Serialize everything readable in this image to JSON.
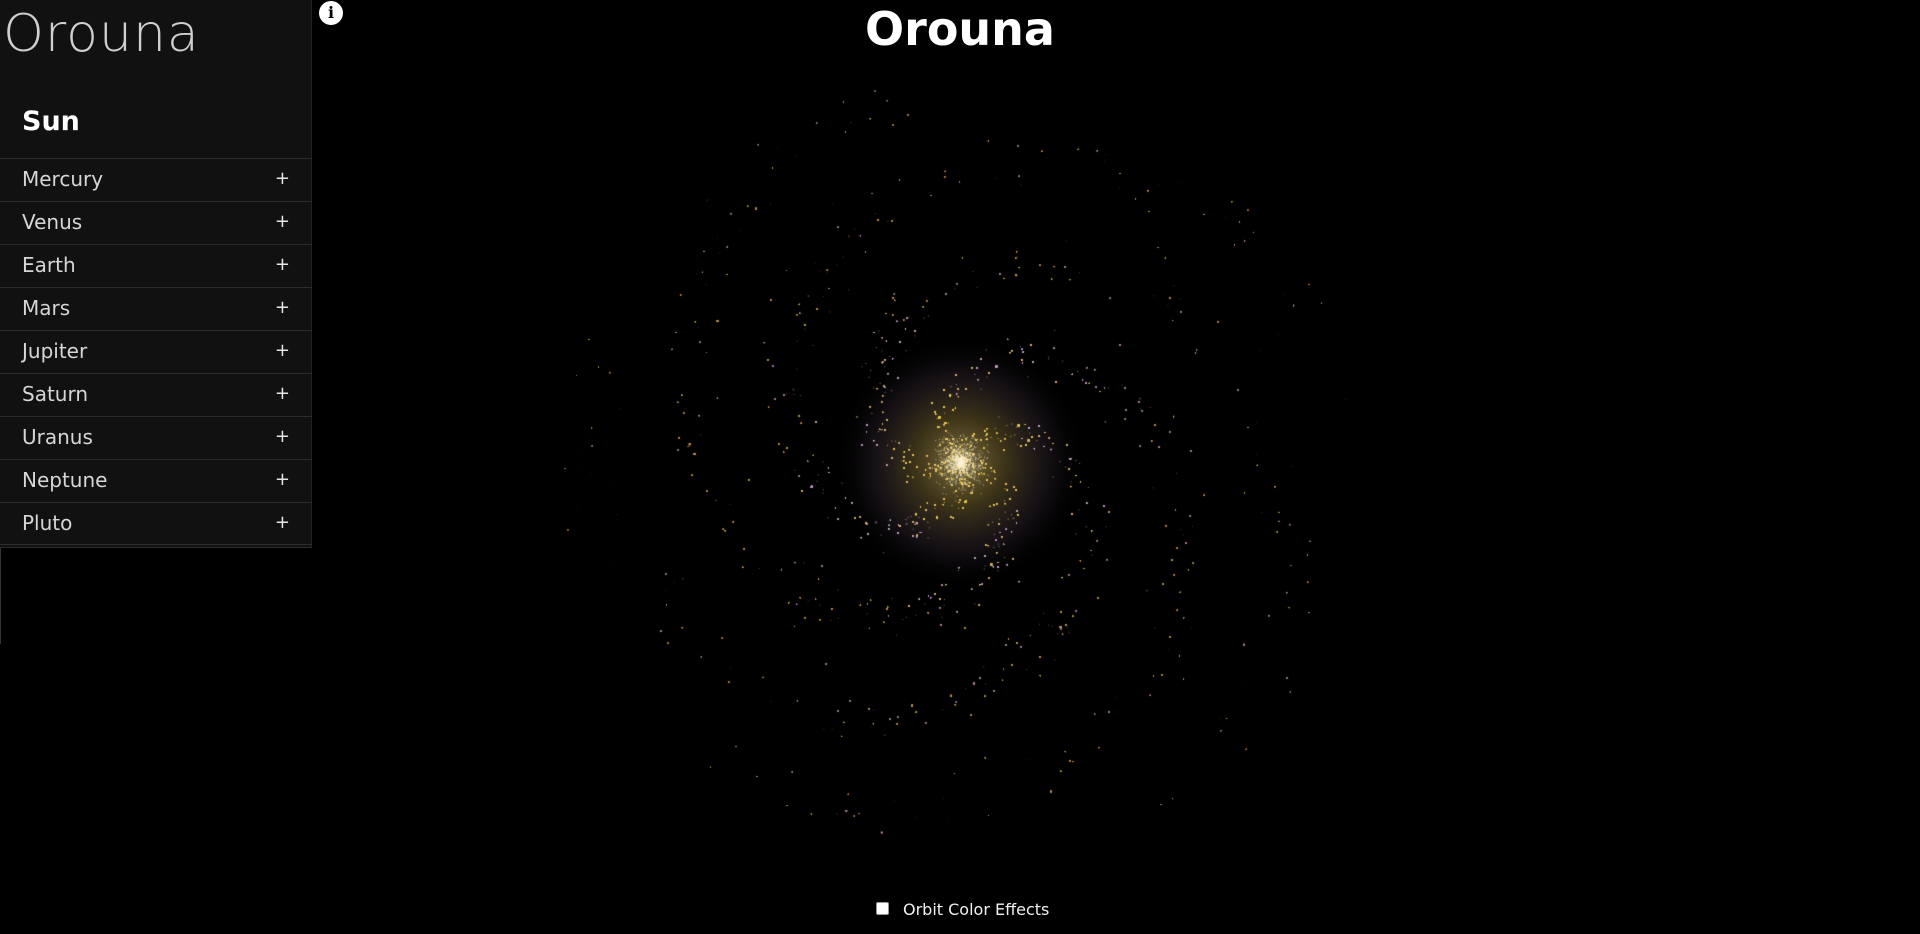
{
  "app": {
    "brand": "Orouna",
    "title": "Orouna"
  },
  "sidebar": {
    "star": "Sun",
    "expand_symbol": "+",
    "planets": [
      {
        "label": "Mercury"
      },
      {
        "label": "Venus"
      },
      {
        "label": "Earth"
      },
      {
        "label": "Mars"
      },
      {
        "label": "Jupiter"
      },
      {
        "label": "Saturn"
      },
      {
        "label": "Uranus"
      },
      {
        "label": "Neptune"
      },
      {
        "label": "Pluto"
      }
    ]
  },
  "info": {
    "icon": "info-icon",
    "glyph": "i"
  },
  "controls": {
    "orbit_color_effects": {
      "label": "Orbit Color Effects",
      "checked": false
    }
  },
  "colors": {
    "background": "#000000",
    "sidebar_bg": "#111111",
    "galaxy_core": "#d8b84a",
    "galaxy_mid": "#b89ab8",
    "galaxy_outer": "#a88a4a"
  }
}
